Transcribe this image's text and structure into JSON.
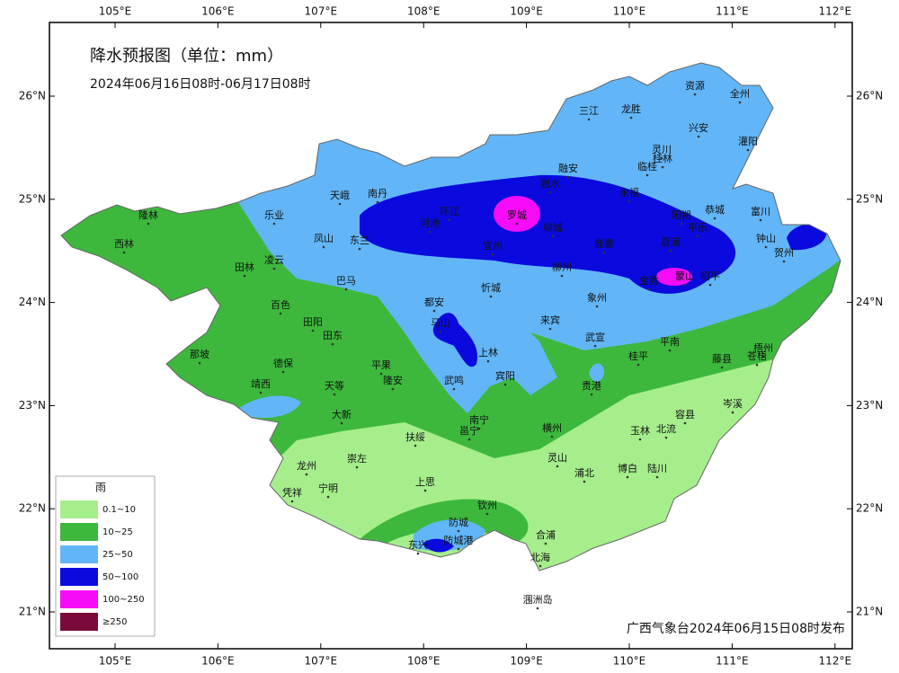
{
  "header": {
    "title": "降水预报图（单位：mm）",
    "subtitle": "2024年06月16日08时-06月17日08时"
  },
  "axes": {
    "lon_labels": [
      "105°E",
      "106°E",
      "107°E",
      "108°E",
      "109°E",
      "110°E",
      "111°E",
      "112°E"
    ],
    "lat_labels": [
      "26°N",
      "25°N",
      "24°N",
      "23°N",
      "22°N",
      "21°N"
    ]
  },
  "legend": {
    "title": "雨",
    "items": [
      {
        "label": "0.1~10",
        "color": "#a6ee8c"
      },
      {
        "label": "10~25",
        "color": "#3db83d"
      },
      {
        "label": "25~50",
        "color": "#62b6f7"
      },
      {
        "label": "50~100",
        "color": "#0a0ade"
      },
      {
        "label": "100~250",
        "color": "#f60cf6"
      },
      {
        "label": "≥250",
        "color": "#7a0a3a"
      }
    ]
  },
  "cities": [
    "隆林",
    "西林",
    "乐业",
    "天峨",
    "南丹",
    "田林",
    "凌云",
    "凤山",
    "东兰",
    "巴马",
    "环江",
    "罗城",
    "融安",
    "融水",
    "三江",
    "龙胜",
    "资源",
    "全州",
    "兴安",
    "灵川",
    "临桂",
    "桂林",
    "灌阳",
    "永福",
    "阳朔",
    "恭城",
    "富川",
    "钟山",
    "贺州",
    "平乐",
    "荔浦",
    "昭平",
    "蒙山",
    "金秀",
    "鹿寨",
    "柳州",
    "柳城",
    "象州",
    "宜州",
    "河池",
    "忻城",
    "都安",
    "马山",
    "上林",
    "宾阳",
    "来宾",
    "武宣",
    "桂平",
    "平南",
    "藤县",
    "梧州",
    "苍梧",
    "岑溪",
    "容县",
    "北流",
    "玉林",
    "陆川",
    "博白",
    "浦北",
    "灵山",
    "横州",
    "贵港",
    "南宁",
    "邕宁",
    "武鸣",
    "隆安",
    "平果",
    "天等",
    "大新",
    "德保",
    "靖西",
    "那坡",
    "百色",
    "田阳",
    "田东",
    "扶绥",
    "崇左",
    "龙州",
    "宁明",
    "凭祥",
    "上思",
    "钦州",
    "防城",
    "防城港",
    "东兴",
    "合浦",
    "北海",
    "涠洲岛"
  ],
  "footer": "广西气象台2024年06月15日08时发布"
}
